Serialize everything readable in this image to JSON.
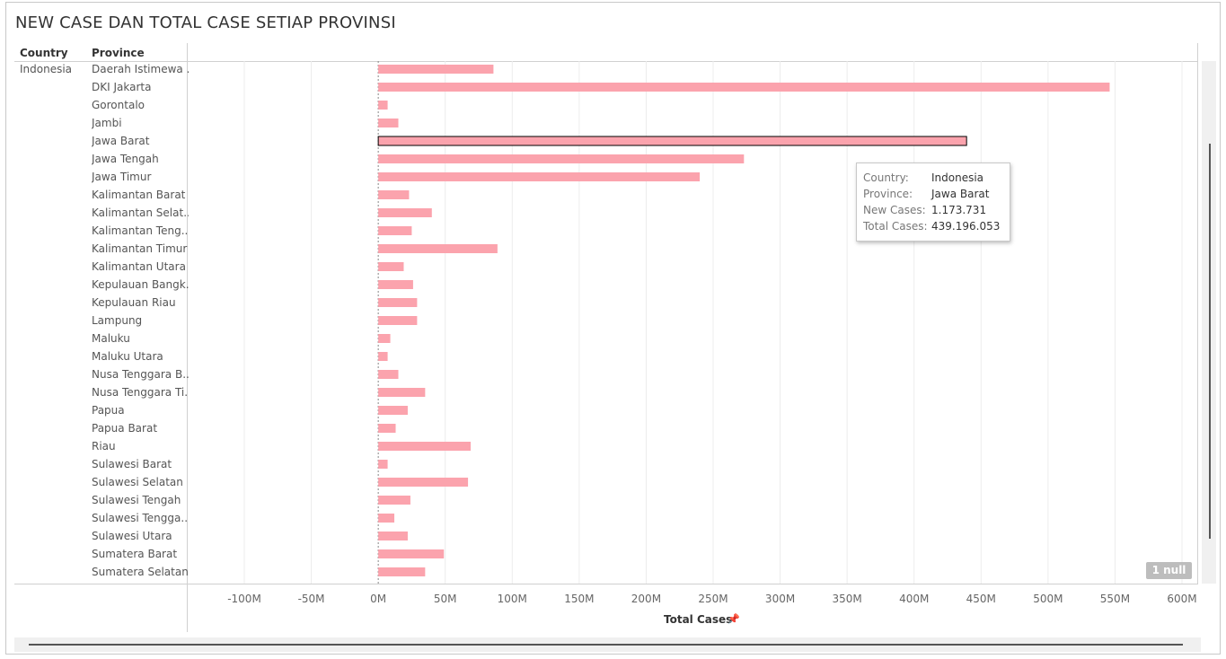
{
  "title": "NEW CASE DAN TOTAL CASE SETIAP PROVINSI",
  "headers": {
    "country": "Country",
    "province": "Province"
  },
  "country": "Indonesia",
  "x_axis_title": "Total Cases",
  "pin_icon": "pin-icon",
  "null_badge": "1 null",
  "bar_color": "#fba3ad",
  "tooltip": {
    "country_label": "Country:",
    "country_value": "Indonesia",
    "province_label": "Province:",
    "province_value": "Jawa Barat",
    "new_label": "New Cases:",
    "new_value": "1.173.731",
    "total_label": "Total Cases:",
    "total_value": "439.196.053"
  },
  "chart_data": {
    "type": "bar",
    "orientation": "horizontal",
    "title": "NEW CASE DAN TOTAL CASE SETIAP PROVINSI",
    "xlabel": "Total Cases",
    "xlim": [
      -100000000,
      600000000
    ],
    "x_ticks": [
      "-100M",
      "-50M",
      "0M",
      "50M",
      "100M",
      "150M",
      "200M",
      "250M",
      "300M",
      "350M",
      "400M",
      "450M",
      "500M",
      "550M",
      "600M"
    ],
    "x_tick_values": [
      -100000000,
      -50000000,
      0,
      50000000,
      100000000,
      150000000,
      200000000,
      250000000,
      300000000,
      350000000,
      400000000,
      450000000,
      500000000,
      550000000,
      600000000
    ],
    "highlighted": "Jawa Barat",
    "categories": [
      "Daerah Istimewa ..",
      "DKI Jakarta",
      "Gorontalo",
      "Jambi",
      "Jawa Barat",
      "Jawa Tengah",
      "Jawa Timur",
      "Kalimantan Barat",
      "Kalimantan Selat..",
      "Kalimantan Teng..",
      "Kalimantan Timur",
      "Kalimantan Utara",
      "Kepulauan Bangk..",
      "Kepulauan Riau",
      "Lampung",
      "Maluku",
      "Maluku Utara",
      "Nusa Tenggara B..",
      "Nusa Tenggara Ti..",
      "Papua",
      "Papua Barat",
      "Riau",
      "Sulawesi Barat",
      "Sulawesi Selatan",
      "Sulawesi Tengah",
      "Sulawesi Tengga..",
      "Sulawesi Utara",
      "Sumatera Barat",
      "Sumatera Selatan"
    ],
    "values": [
      86000000,
      546000000,
      7000000,
      15000000,
      439196053,
      273000000,
      240000000,
      23000000,
      40000000,
      25000000,
      89000000,
      19000000,
      26000000,
      29000000,
      29000000,
      9000000,
      7000000,
      15000000,
      35000000,
      22000000,
      13000000,
      69000000,
      7000000,
      67000000,
      24000000,
      12000000,
      22000000,
      49000000,
      35000000
    ]
  }
}
